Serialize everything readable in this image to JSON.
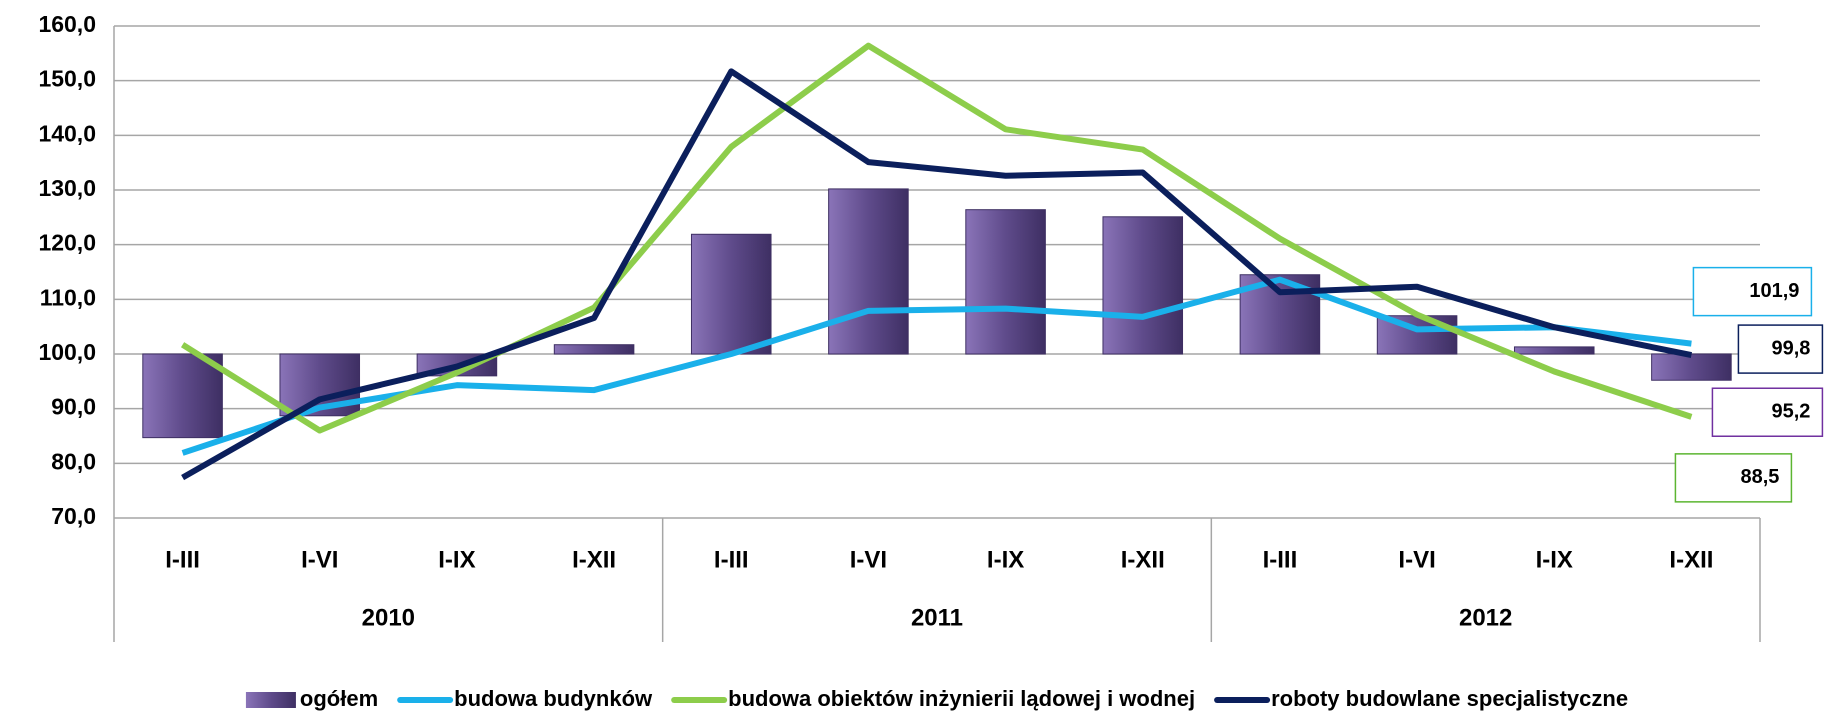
{
  "chart_data": {
    "type": "bar-line",
    "categories": [
      "I-III",
      "I-VI",
      "I-IX",
      "I-XII",
      "I-III",
      "I-VI",
      "I-IX",
      "I-XII",
      "I-III",
      "I-VI",
      "I-IX",
      "I-XII"
    ],
    "groups": [
      "2010",
      "2011",
      "2012"
    ],
    "bar_base": 100,
    "series": [
      {
        "name": "ogółem",
        "kind": "bar",
        "color": "#5f4b8b",
        "values": [
          84.7,
          88.7,
          96.0,
          101.7,
          121.9,
          130.2,
          126.4,
          125.1,
          114.5,
          107.0,
          101.3,
          95.2
        ],
        "value_labels": [
          null,
          null,
          null,
          null,
          null,
          null,
          null,
          null,
          null,
          null,
          null,
          "95,2"
        ]
      },
      {
        "name": "budowa budynków",
        "kind": "line",
        "color": "#1ab0ea",
        "values": [
          81.9,
          90.2,
          94.3,
          93.4,
          100.0,
          107.9,
          108.3,
          106.8,
          113.6,
          104.5,
          104.9,
          101.9
        ],
        "value_labels": [
          null,
          null,
          null,
          null,
          null,
          null,
          null,
          null,
          null,
          null,
          null,
          "101,9"
        ]
      },
      {
        "name": "budowa obiektów inżynierii lądowej i wodnej",
        "kind": "line",
        "color": "#8dcd4b",
        "values": [
          101.7,
          86.0,
          96.6,
          108.5,
          137.9,
          156.4,
          141.1,
          137.4,
          121.1,
          107.2,
          96.8,
          88.5
        ],
        "value_labels": [
          null,
          null,
          null,
          null,
          null,
          null,
          null,
          null,
          null,
          null,
          null,
          "88,5"
        ]
      },
      {
        "name": "roboty budowlane specjalistyczne",
        "kind": "line",
        "color": "#0b1f5c",
        "values": [
          77.4,
          91.7,
          97.7,
          106.6,
          151.7,
          135.1,
          132.6,
          133.2,
          111.3,
          112.3,
          104.9,
          99.8
        ],
        "value_labels": [
          null,
          null,
          null,
          null,
          null,
          null,
          null,
          null,
          null,
          null,
          null,
          "99,8"
        ]
      }
    ],
    "ylim": [
      70,
      160
    ],
    "yticks": [
      {
        "value": 70,
        "label": "70,0"
      },
      {
        "value": 80,
        "label": "80,0"
      },
      {
        "value": 90,
        "label": "90,0"
      },
      {
        "value": 100,
        "label": "100,0"
      },
      {
        "value": 110,
        "label": "110,0"
      },
      {
        "value": 120,
        "label": "120,0"
      },
      {
        "value": 130,
        "label": "130,0"
      },
      {
        "value": 140,
        "label": "140,0"
      },
      {
        "value": 150,
        "label": "150,0"
      },
      {
        "value": 160,
        "label": "160,0"
      }
    ],
    "grid": true,
    "legend": "bottom"
  }
}
